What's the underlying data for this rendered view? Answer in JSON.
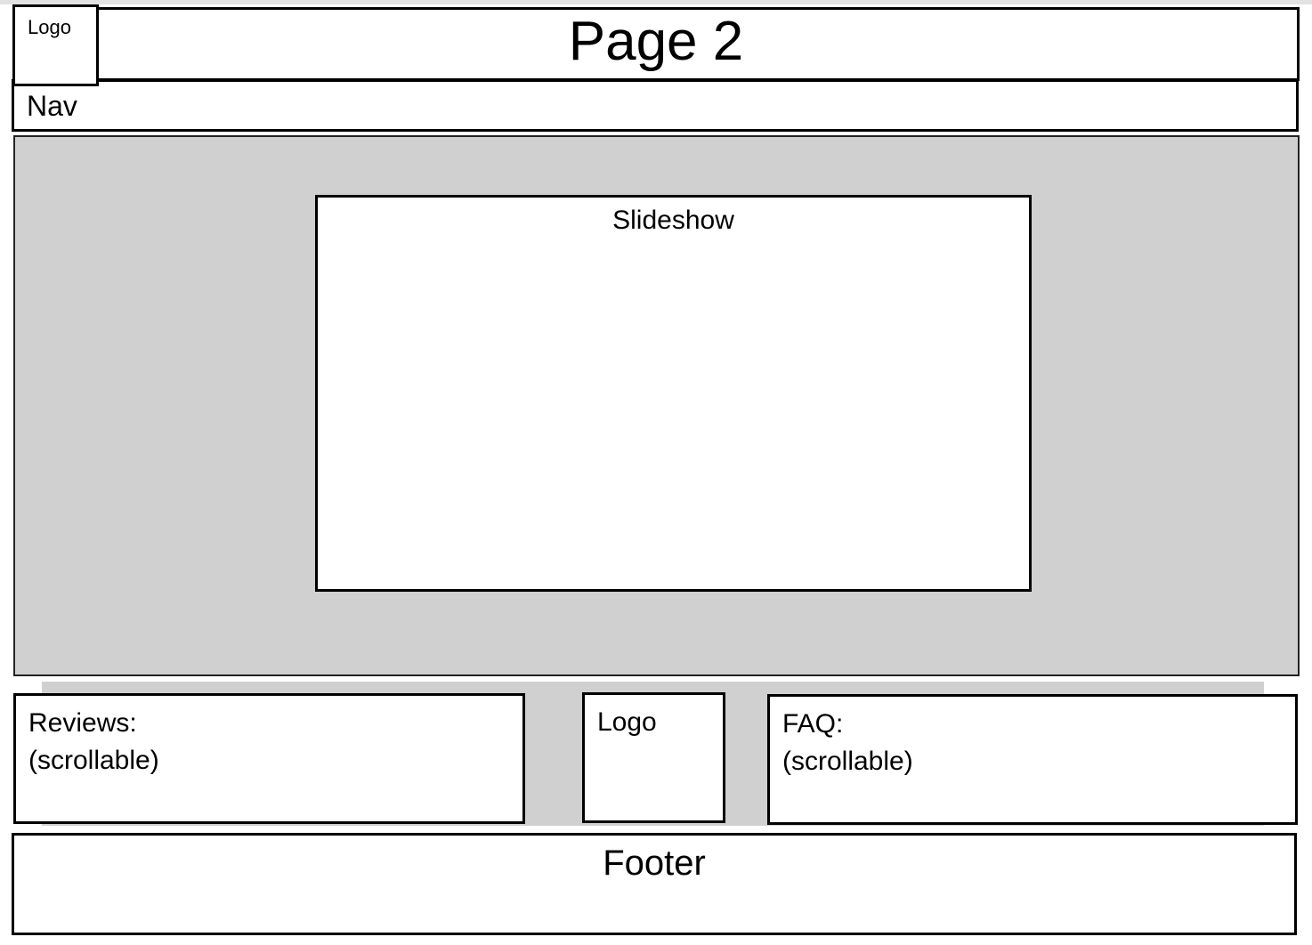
{
  "header": {
    "title": "Page 2",
    "logo_label": "Logo"
  },
  "nav": {
    "label": "Nav"
  },
  "hero": {
    "slideshow_label": "Slideshow"
  },
  "reviews": {
    "title": "Reviews:",
    "note": "(scrollable)"
  },
  "bottom_logo": {
    "label": "Logo"
  },
  "faq": {
    "title": "FAQ:",
    "note": "(scrollable)"
  },
  "footer": {
    "label": "Footer"
  },
  "colors": {
    "hero_background": "#d0d0d0",
    "box_border": "#000000",
    "box_fill": "#ffffff"
  }
}
